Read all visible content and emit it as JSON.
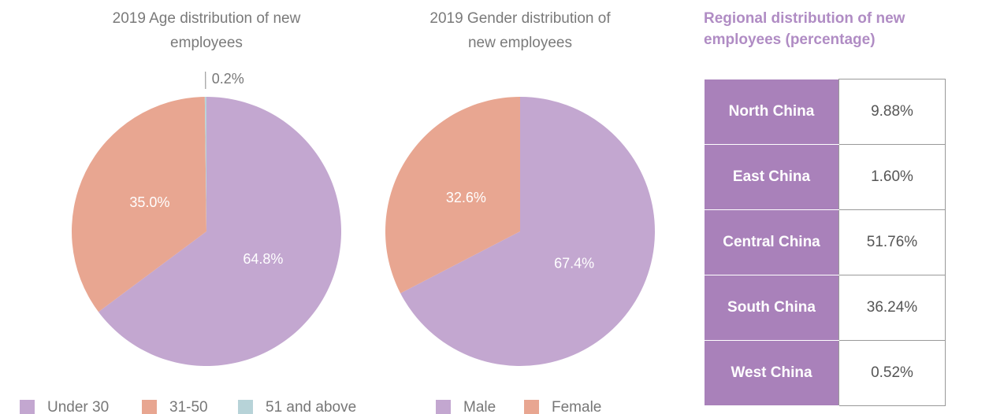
{
  "chart_data": [
    {
      "type": "pie",
      "title": "2019 Age distribution of new employees",
      "categories": [
        "Under 30",
        "31-50",
        "51 and above"
      ],
      "values": [
        64.8,
        35.0,
        0.2
      ],
      "value_labels": [
        "64.8%",
        "35.0%",
        "0.2%"
      ],
      "colors": [
        "#c3a7d0",
        "#e8a691",
        "#b7d3d8"
      ],
      "legend": "bottom"
    },
    {
      "type": "pie",
      "title": "2019 Gender distribution of new employees",
      "categories": [
        "Male",
        "Female"
      ],
      "values": [
        67.4,
        32.6
      ],
      "value_labels": [
        "67.4%",
        "32.6%"
      ],
      "colors": [
        "#c3a7d0",
        "#e8a691"
      ],
      "legend": "bottom"
    }
  ],
  "table": {
    "title": "Regional distribution of new employees (percentage)",
    "rows": [
      [
        "North China",
        "9.88%"
      ],
      [
        "East China",
        "1.60%"
      ],
      [
        "Central China",
        "51.76%"
      ],
      [
        "South China",
        "36.24%"
      ],
      [
        "West China",
        "0.52%"
      ]
    ]
  }
}
